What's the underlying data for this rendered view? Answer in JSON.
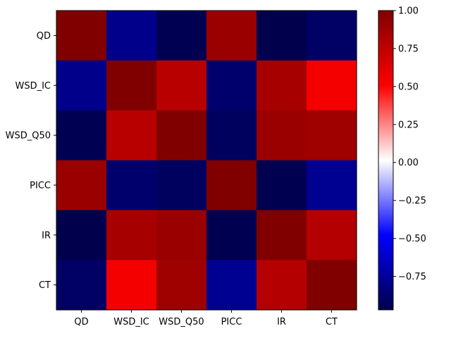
{
  "chart_data": {
    "type": "heatmap",
    "title": "",
    "xlabel": "",
    "ylabel": "",
    "x_labels": [
      "QD",
      "WSD_IC",
      "WSD_Q50",
      "PICC",
      "IR",
      "CT"
    ],
    "y_labels": [
      "QD",
      "WSD_IC",
      "WSD_Q50",
      "PICC",
      "IR",
      "CT"
    ],
    "values": [
      [
        1.0,
        -0.8,
        -0.95,
        0.9,
        -0.97,
        -0.9
      ],
      [
        -0.8,
        1.0,
        0.78,
        -0.88,
        0.85,
        0.55
      ],
      [
        -0.95,
        0.78,
        1.0,
        -0.92,
        0.9,
        0.88
      ],
      [
        0.9,
        -0.88,
        -0.92,
        1.0,
        -0.96,
        -0.78
      ],
      [
        -0.97,
        0.85,
        0.9,
        -0.96,
        1.0,
        0.8
      ],
      [
        -0.9,
        0.55,
        0.88,
        -0.78,
        0.8,
        1.0
      ]
    ],
    "colormap": "seismic",
    "value_range": [
      -0.97,
      1.0
    ],
    "colorbar": {
      "ticks": [
        1.0,
        0.75,
        0.5,
        0.25,
        0.0,
        -0.25,
        -0.5,
        -0.75
      ],
      "tick_labels": [
        "1.00",
        "0.75",
        "0.50",
        "0.25",
        "0.00",
        "−0.25",
        "−0.50",
        "−0.75"
      ]
    },
    "grid": false,
    "legend": "colorbar-right"
  }
}
